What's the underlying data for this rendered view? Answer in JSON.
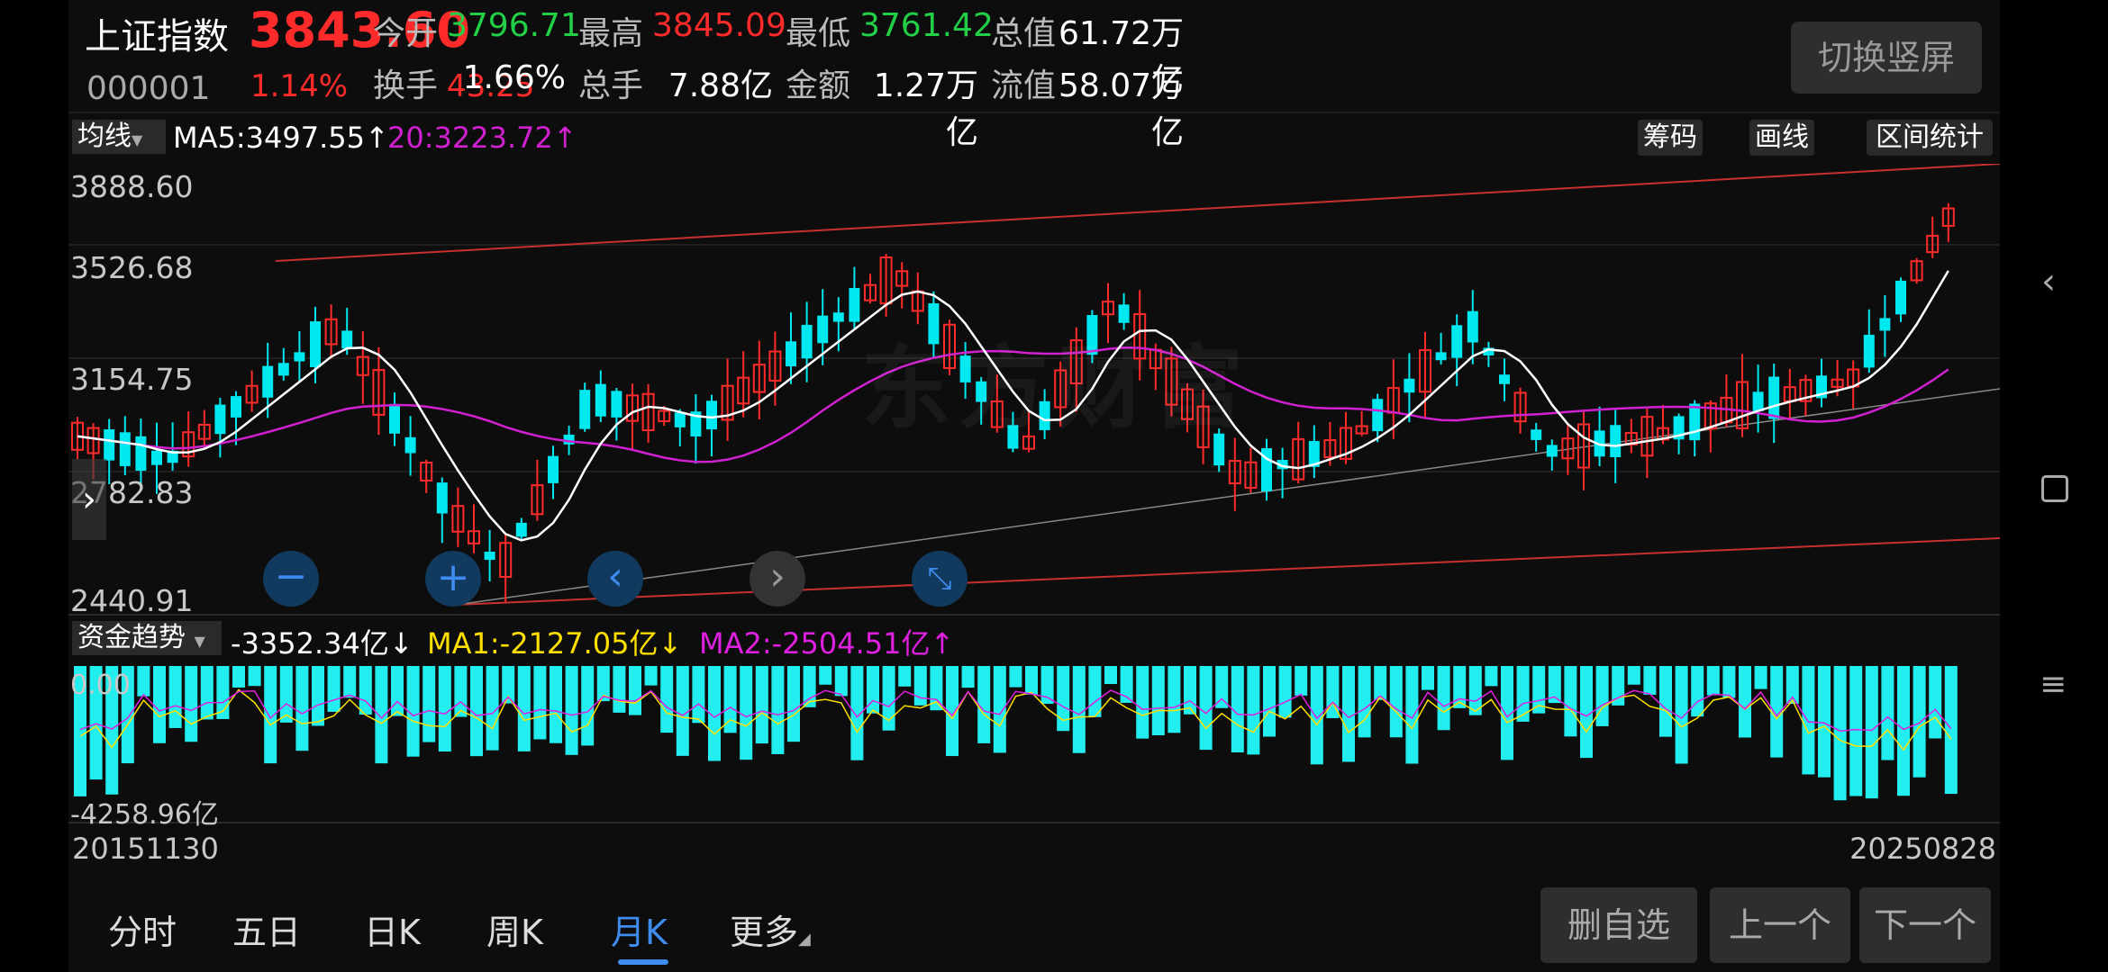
{
  "header": {
    "name": "上证指数",
    "price": "3843.60",
    "code": "000001",
    "change_pct": "1.14%",
    "change": "43.25",
    "switch_label": "切换竖屏",
    "quotes": [
      {
        "label": "今开",
        "value": "3796.71",
        "color": "#22d047"
      },
      {
        "label": "最高",
        "value": "3845.09",
        "color": "#ff2a2a"
      },
      {
        "label": "最低",
        "value": "3761.42",
        "color": "#22d047"
      },
      {
        "label": "总值",
        "value": "61.72万亿",
        "color": "#ffffff"
      },
      {
        "label": "换手",
        "value": "1.66%",
        "color": "#ffffff"
      },
      {
        "label": "总手",
        "value": "7.88亿",
        "color": "#ffffff"
      },
      {
        "label": "金额",
        "value": "1.27万亿",
        "color": "#ffffff"
      },
      {
        "label": "流值",
        "value": "58.07万亿",
        "color": "#ffffff"
      }
    ]
  },
  "ma_bar": {
    "selector": "均线",
    "ma5": "MA5:3497.55↑",
    "ma20": "20:3223.72↑",
    "buttons": [
      "筹码",
      "画线",
      "区间统计"
    ]
  },
  "price_axis": [
    "3888.60",
    "3526.68",
    "3154.75",
    "2782.83",
    "2440.91"
  ],
  "watermark": "东方财富",
  "indicator": {
    "selector": "资金趋势",
    "value": "-3352.34亿↓",
    "ma1": "MA1:-2127.05亿↓",
    "ma2": "MA2:-2504.51亿↑",
    "axis_top": "0.00",
    "axis_bottom": "-4258.96亿"
  },
  "dates": {
    "start": "20151130",
    "end": "20250828"
  },
  "tabs": [
    "分时",
    "五日",
    "日K",
    "周K",
    "月K",
    "更多"
  ],
  "active_tab": "月K",
  "actions": [
    "删自选",
    "上一个",
    "下一个"
  ],
  "colors": {
    "up": "#ff2a2a",
    "down": "#00e8f0",
    "ma5": "#ffffff",
    "ma20": "#d020d0",
    "accent": "#3f8cf0"
  }
}
